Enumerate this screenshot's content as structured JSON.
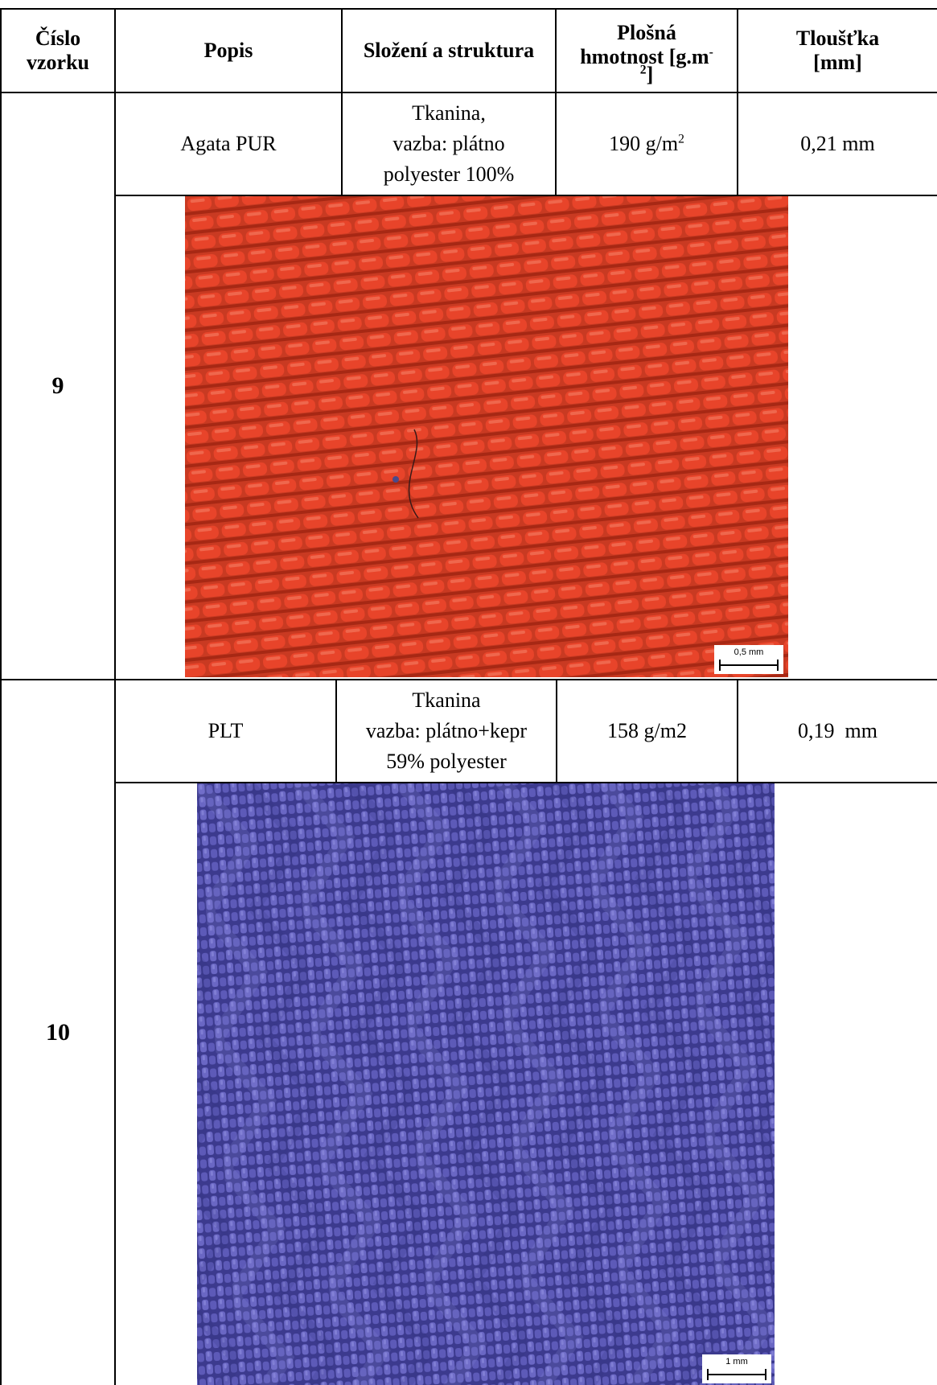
{
  "table": {
    "headers": {
      "cislo": [
        "Číslo",
        "vzorku"
      ],
      "popis": "Popis",
      "slozeni": "Složení a struktura",
      "hmotnost": [
        "Plošná",
        "hmotnost [g.m",
        "-",
        "2",
        "]"
      ],
      "tloustka": [
        "Tloušťka",
        "[mm]"
      ]
    },
    "samples": [
      {
        "number": "9",
        "popis": "Agata PUR",
        "slozeni": [
          "Tkanina,",
          "vazba: plátno",
          "polyester 100%"
        ],
        "hmotnost": "190 g/m",
        "hmotnost_sup": "2",
        "tloustka": "0,21 mm",
        "photo": {
          "scale_label": "0,5 mm",
          "color": "#e8442a",
          "shadow": "#b72a17",
          "highlight": "#f4836a"
        }
      },
      {
        "number": "10",
        "popis": "PLT",
        "slozeni": [
          "Tkanina",
          "vazba: plátno+kepr",
          "59% polyester"
        ],
        "hmotnost": "158 g/m2",
        "tloustka": "0,19  mm",
        "photo": {
          "scale_label": "1 mm",
          "color": "#5d5ab8",
          "shadow": "#2f2d78",
          "highlight": "#8f8ee0"
        }
      }
    ]
  }
}
